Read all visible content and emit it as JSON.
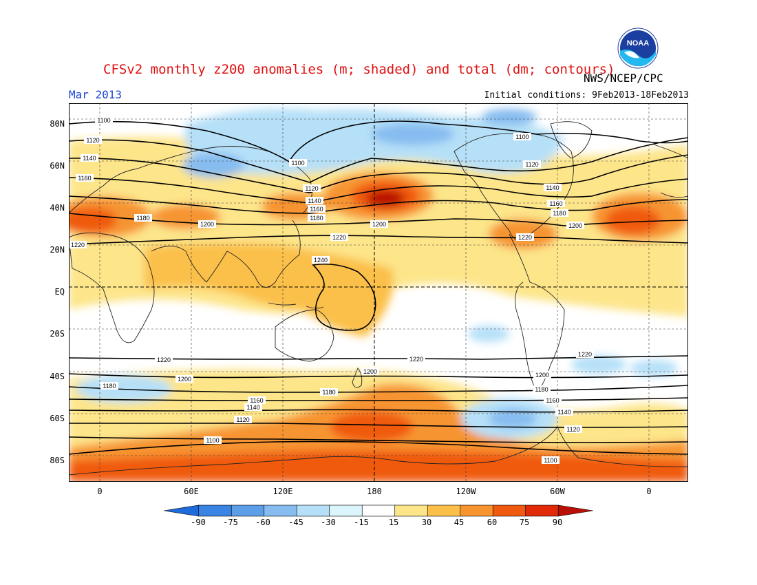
{
  "header": {
    "title": "CFSv2 monthly z200 anomalies (m; shaded) and total (dm; contours)",
    "agency": "NWS/NCEP/CPC",
    "month": "Mar 2013",
    "initial_conditions": "Initial conditions: 9Feb2013-18Feb2013",
    "logo_text": "NOAA"
  },
  "axes": {
    "lat_labels": [
      "80N",
      "60N",
      "40N",
      "20N",
      "EQ",
      "20S",
      "40S",
      "60S",
      "80S"
    ],
    "lon_labels": [
      "0",
      "60E",
      "120E",
      "180",
      "120W",
      "60W",
      "0"
    ]
  },
  "colorbar": {
    "labels": [
      "-90",
      "-75",
      "-60",
      "-45",
      "-30",
      "-15",
      "15",
      "30",
      "45",
      "60",
      "75",
      "90"
    ],
    "colors": [
      "#1e6cdc",
      "#3a84e4",
      "#5c9ee8",
      "#86bcf0",
      "#b6e0f8",
      "#dcf4fc",
      "#ffffff",
      "#fde58a",
      "#fbc04a",
      "#f79430",
      "#f05a10",
      "#e02a08",
      "#b81006"
    ]
  },
  "contour_labels": [
    "1100",
    "1120",
    "1140",
    "1160",
    "1180",
    "1200",
    "1220",
    "1240"
  ],
  "map_colors": {
    "land_outline": "#222222",
    "contour": "#000000",
    "frame": "#000000"
  }
}
